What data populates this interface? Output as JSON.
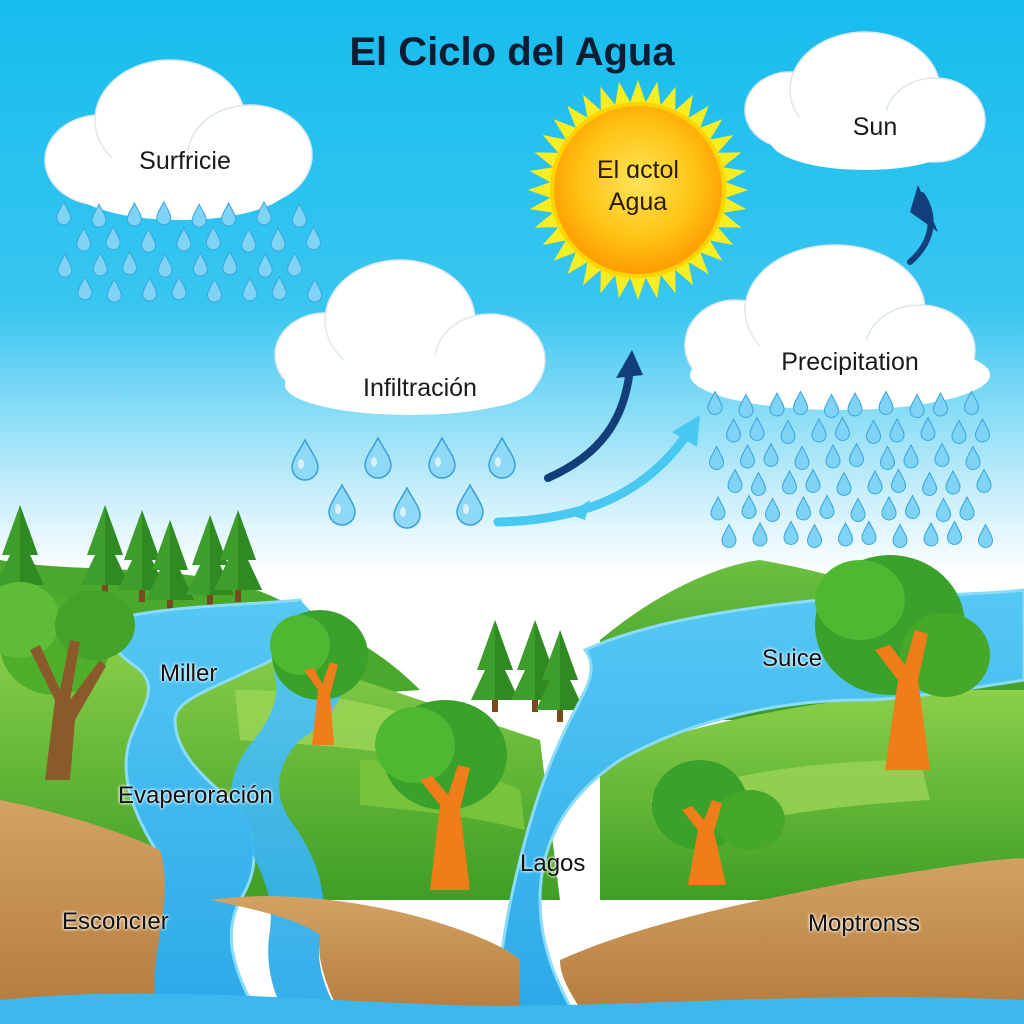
{
  "diagram": {
    "title": "El Ciclo del Agua",
    "clouds": {
      "top_left": "Surfricie",
      "top_right": "Sun",
      "middle": "Infiltración",
      "right": "Precipitation"
    },
    "sun": {
      "line1": "El ɑctol",
      "line2": "Agua"
    },
    "ground_labels": {
      "miller": "Miller",
      "evaporation": "Evaperoración",
      "escondido": "Esconcıer",
      "lagos": "Lagos",
      "suice": "Suice",
      "montanas": "Moptronss"
    },
    "colors": {
      "sky_top": "#1cc0ee",
      "sky_bottom": "#ffffff",
      "sun_core": "#ffb800",
      "sun_rays": "#f6ec1f",
      "water": "#3cb8ef",
      "grass": "#4caf2a",
      "soil": "#c8924f",
      "trunk": "#f07c1a",
      "arrow_dark": "#123e7a",
      "arrow_light": "#48c9f2"
    }
  }
}
